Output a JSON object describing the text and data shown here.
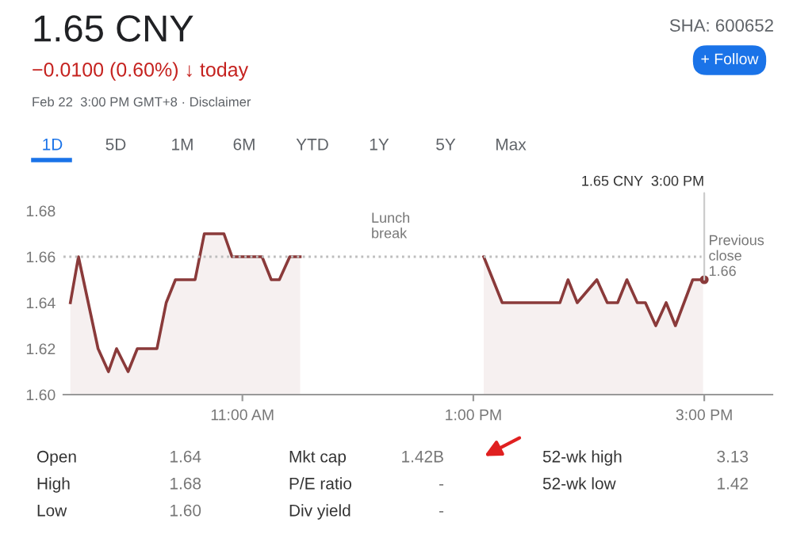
{
  "chart_data": {
    "type": "area",
    "title": "1.65 CNY",
    "subtitle": "−0.0100 (0.60%) ↓ today",
    "x": [
      9.51,
      9.58,
      9.75,
      9.84,
      9.91,
      10.01,
      10.09,
      10.26,
      10.34,
      10.42,
      10.59,
      10.67,
      10.84,
      10.91,
      11.17,
      11.25,
      11.32,
      11.41,
      11.5,
      12.3,
      13.09,
      13.25,
      13.75,
      13.82,
      13.9,
      14.07,
      14.16,
      14.25,
      14.33,
      14.42,
      14.49,
      14.58,
      14.67,
      14.75,
      14.9,
      14.99
    ],
    "series": [
      {
        "color": "#8a3a3a",
        "values": [
          1.64,
          1.66,
          1.62,
          1.61,
          1.62,
          1.61,
          1.62,
          1.62,
          1.64,
          1.65,
          1.65,
          1.67,
          1.67,
          1.66,
          1.66,
          1.65,
          1.65,
          1.66,
          1.66,
          null,
          1.66,
          1.64,
          1.64,
          1.65,
          1.64,
          1.65,
          1.64,
          1.64,
          1.65,
          1.64,
          1.64,
          1.63,
          1.64,
          1.63,
          1.65,
          1.65
        ]
      }
    ],
    "xlim": [
      9.45,
      15.59
    ],
    "ylim": [
      1.6,
      1.68
    ],
    "xticks": [
      {
        "value": 11,
        "label": "11:00 AM"
      },
      {
        "value": 13,
        "label": "1:00 PM"
      },
      {
        "value": 15,
        "label": "3:00 PM"
      }
    ],
    "yticks": [
      {
        "value": 1.6,
        "label": "1.60"
      },
      {
        "value": 1.62,
        "label": "1.62"
      },
      {
        "value": 1.64,
        "label": "1.64"
      },
      {
        "value": 1.66,
        "label": "1.66"
      },
      {
        "value": 1.68,
        "label": "1.68"
      }
    ],
    "grid": false,
    "legend": false,
    "ref_lines": [
      {
        "axis": "y",
        "value": 1.66,
        "label": "Previous\nclose\n1.66",
        "color": "#bdbdbd",
        "line_style": "dotted"
      }
    ],
    "annotations": [
      {
        "text": "1.65 CNY  3:00 PM",
        "x": 15,
        "y": 1.65
      },
      "SHA: 600652",
      "+ Follow",
      "Feb 22  3:00 PM GMT+8 · Disclaimer",
      "1D",
      "5D",
      "1M",
      "6M",
      "YTD",
      "1Y",
      "5Y",
      "Max",
      "Lunch\nbreak",
      "Open",
      "1.64",
      "High",
      "1.68",
      "Low",
      "1.60",
      "Mkt cap",
      "1.42B",
      "P/E ratio",
      "-",
      "Div yield",
      "-",
      "52-wk high",
      "3.13",
      "52-wk low",
      "1.42"
    ]
  }
}
